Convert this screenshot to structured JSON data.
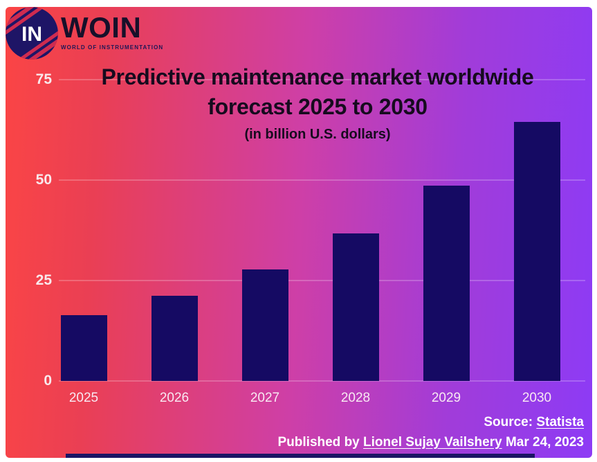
{
  "logo": {
    "mark_text": "IN",
    "name": "WOIN",
    "tagline": "WORLD OF INSTRUMENTATION"
  },
  "chart_data": {
    "type": "bar",
    "title": "Predictive maintenance market worldwide forecast 2025 to 2030",
    "title_lines": [
      "Predictive maintenance market worldwide",
      "forecast 2025 to 2030"
    ],
    "subtitle": "(in billion U.S. dollars)",
    "categories": [
      "2025",
      "2026",
      "2027",
      "2028",
      "2029",
      "2030"
    ],
    "values": [
      16.3,
      21.2,
      27.8,
      36.7,
      48.6,
      64.5
    ],
    "ylabel": "billion U.S. dollars",
    "xlabel": "",
    "yticks": [
      0,
      25,
      50,
      75
    ],
    "ylim": [
      0,
      75
    ],
    "grid": "horizontal",
    "legend": "none"
  },
  "footer": {
    "source_prefix": "Source:",
    "source_link": "Statista",
    "published_prefix": "Published by",
    "author_link": "Lionel Sujay Vailshery",
    "date": "Mar 24, 2023"
  },
  "colors": {
    "gradient_left": "#fb4545",
    "gradient_mid": "#ce3fa7",
    "gradient_right": "#8d3bf5",
    "bar": "#150a63",
    "title_text": "#160b1e",
    "axis_text": "#f8e9f2",
    "footer_text": "#ffffff",
    "logo_circle": "#1e1566",
    "logo_stripe": "#cf2b50",
    "bottom_strip": "#1b1464"
  }
}
